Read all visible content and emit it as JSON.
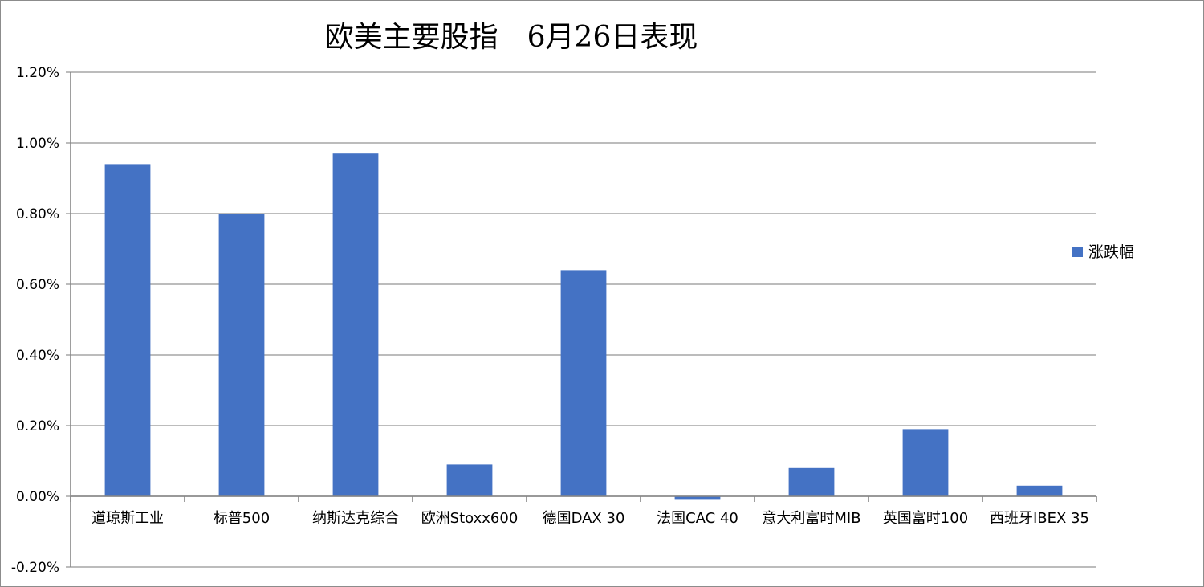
{
  "chart_data": {
    "type": "bar",
    "title": "欧美主要股指　6月26日表现",
    "xlabel": "",
    "ylabel": "",
    "categories": [
      "道琼斯工业",
      "标普500",
      "纳斯达克综合",
      "欧洲Stoxx600",
      "德国DAX 30",
      "法国CAC 40",
      "意大利富时MIB",
      "英国富时100",
      "西班牙IBEX 35"
    ],
    "series": [
      {
        "name": "涨跌幅",
        "values": [
          0.0094,
          0.008,
          0.0097,
          0.0009,
          0.0064,
          -0.0001,
          0.0008,
          0.0019,
          0.0003
        ],
        "color": "#4472C4"
      }
    ],
    "ylim": [
      -0.002,
      0.012
    ],
    "yticks": [
      -0.002,
      0.0,
      0.002,
      0.004,
      0.006,
      0.008,
      0.01,
      0.012
    ],
    "ytick_labels": [
      "-0.20%",
      "0.00%",
      "0.20%",
      "0.40%",
      "0.60%",
      "0.80%",
      "1.00%",
      "1.20%"
    ],
    "grid": true,
    "legend_position": "right"
  },
  "colors": {
    "bar": "#4472C4",
    "grid": "#a6a6a6",
    "axis": "#868686",
    "frame": "#8c8c8c"
  }
}
